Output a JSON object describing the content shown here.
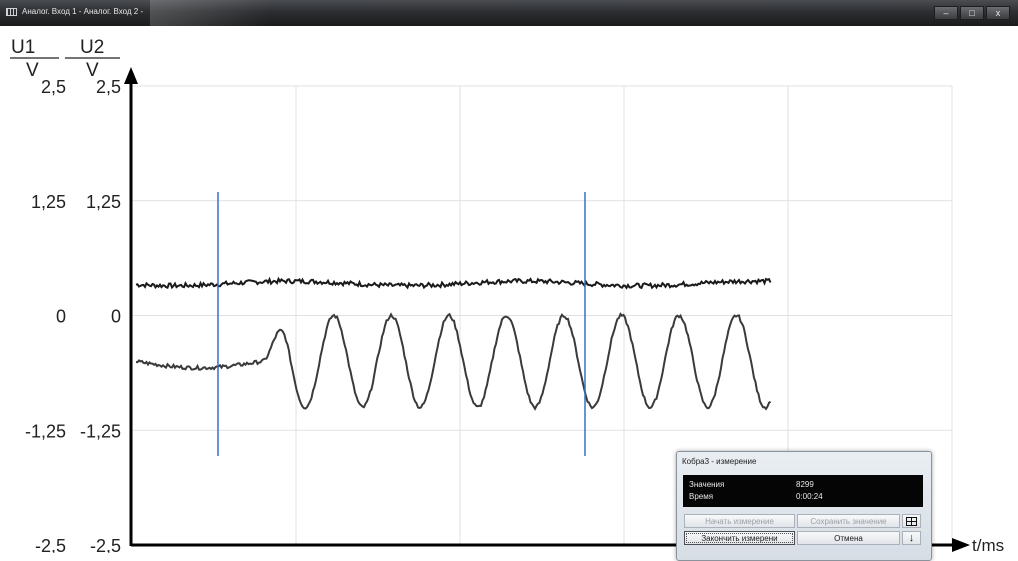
{
  "window": {
    "title": "Аналог. Вход 1 - Аналог. Вход 2 -",
    "controls": {
      "minimize": "–",
      "maximize": "□",
      "close": "x"
    }
  },
  "chart_data": {
    "type": "line",
    "y_axis_label_1": "U1",
    "y_axis_unit_1": "V",
    "y_axis_label_2": "U2",
    "y_axis_unit_2": "V",
    "x_axis_label": "t/ms",
    "ylim": [
      -2.5,
      2.5
    ],
    "y_ticks": [
      "2,5",
      "1,25",
      "0",
      "-1,25",
      "-2,5"
    ],
    "y_tick_values": [
      2.5,
      1.25,
      0,
      -1.25,
      -2.5
    ],
    "grid": true,
    "series": [
      {
        "values": "noisy flat trace near +0.35 V",
        "level": 0.35,
        "color": "#1a1a1a"
      },
      {
        "values": "sine after initial flat segment, centre -0.5 V, amplitude 0.5 V",
        "level": -0.5,
        "amplitude": 0.5,
        "periods": 9,
        "color": "#3a3a3a"
      }
    ],
    "markers": [
      {
        "name": "cursor-1",
        "color": "#3a6fc8"
      },
      {
        "name": "cursor-2",
        "color": "#3a6fc8"
      }
    ]
  },
  "dialog": {
    "title": "Кобра3 - измерение",
    "values_label": "Значения",
    "values_value": "8299",
    "time_label": "Время",
    "time_value": "0:00:24",
    "start_button": "Начать измерение",
    "save_button": "Сохранить значение",
    "stop_button": "Закончить измерени",
    "cancel_button": "Отмена",
    "table_icon": "table-icon",
    "download_icon": "arrow-down-icon"
  }
}
